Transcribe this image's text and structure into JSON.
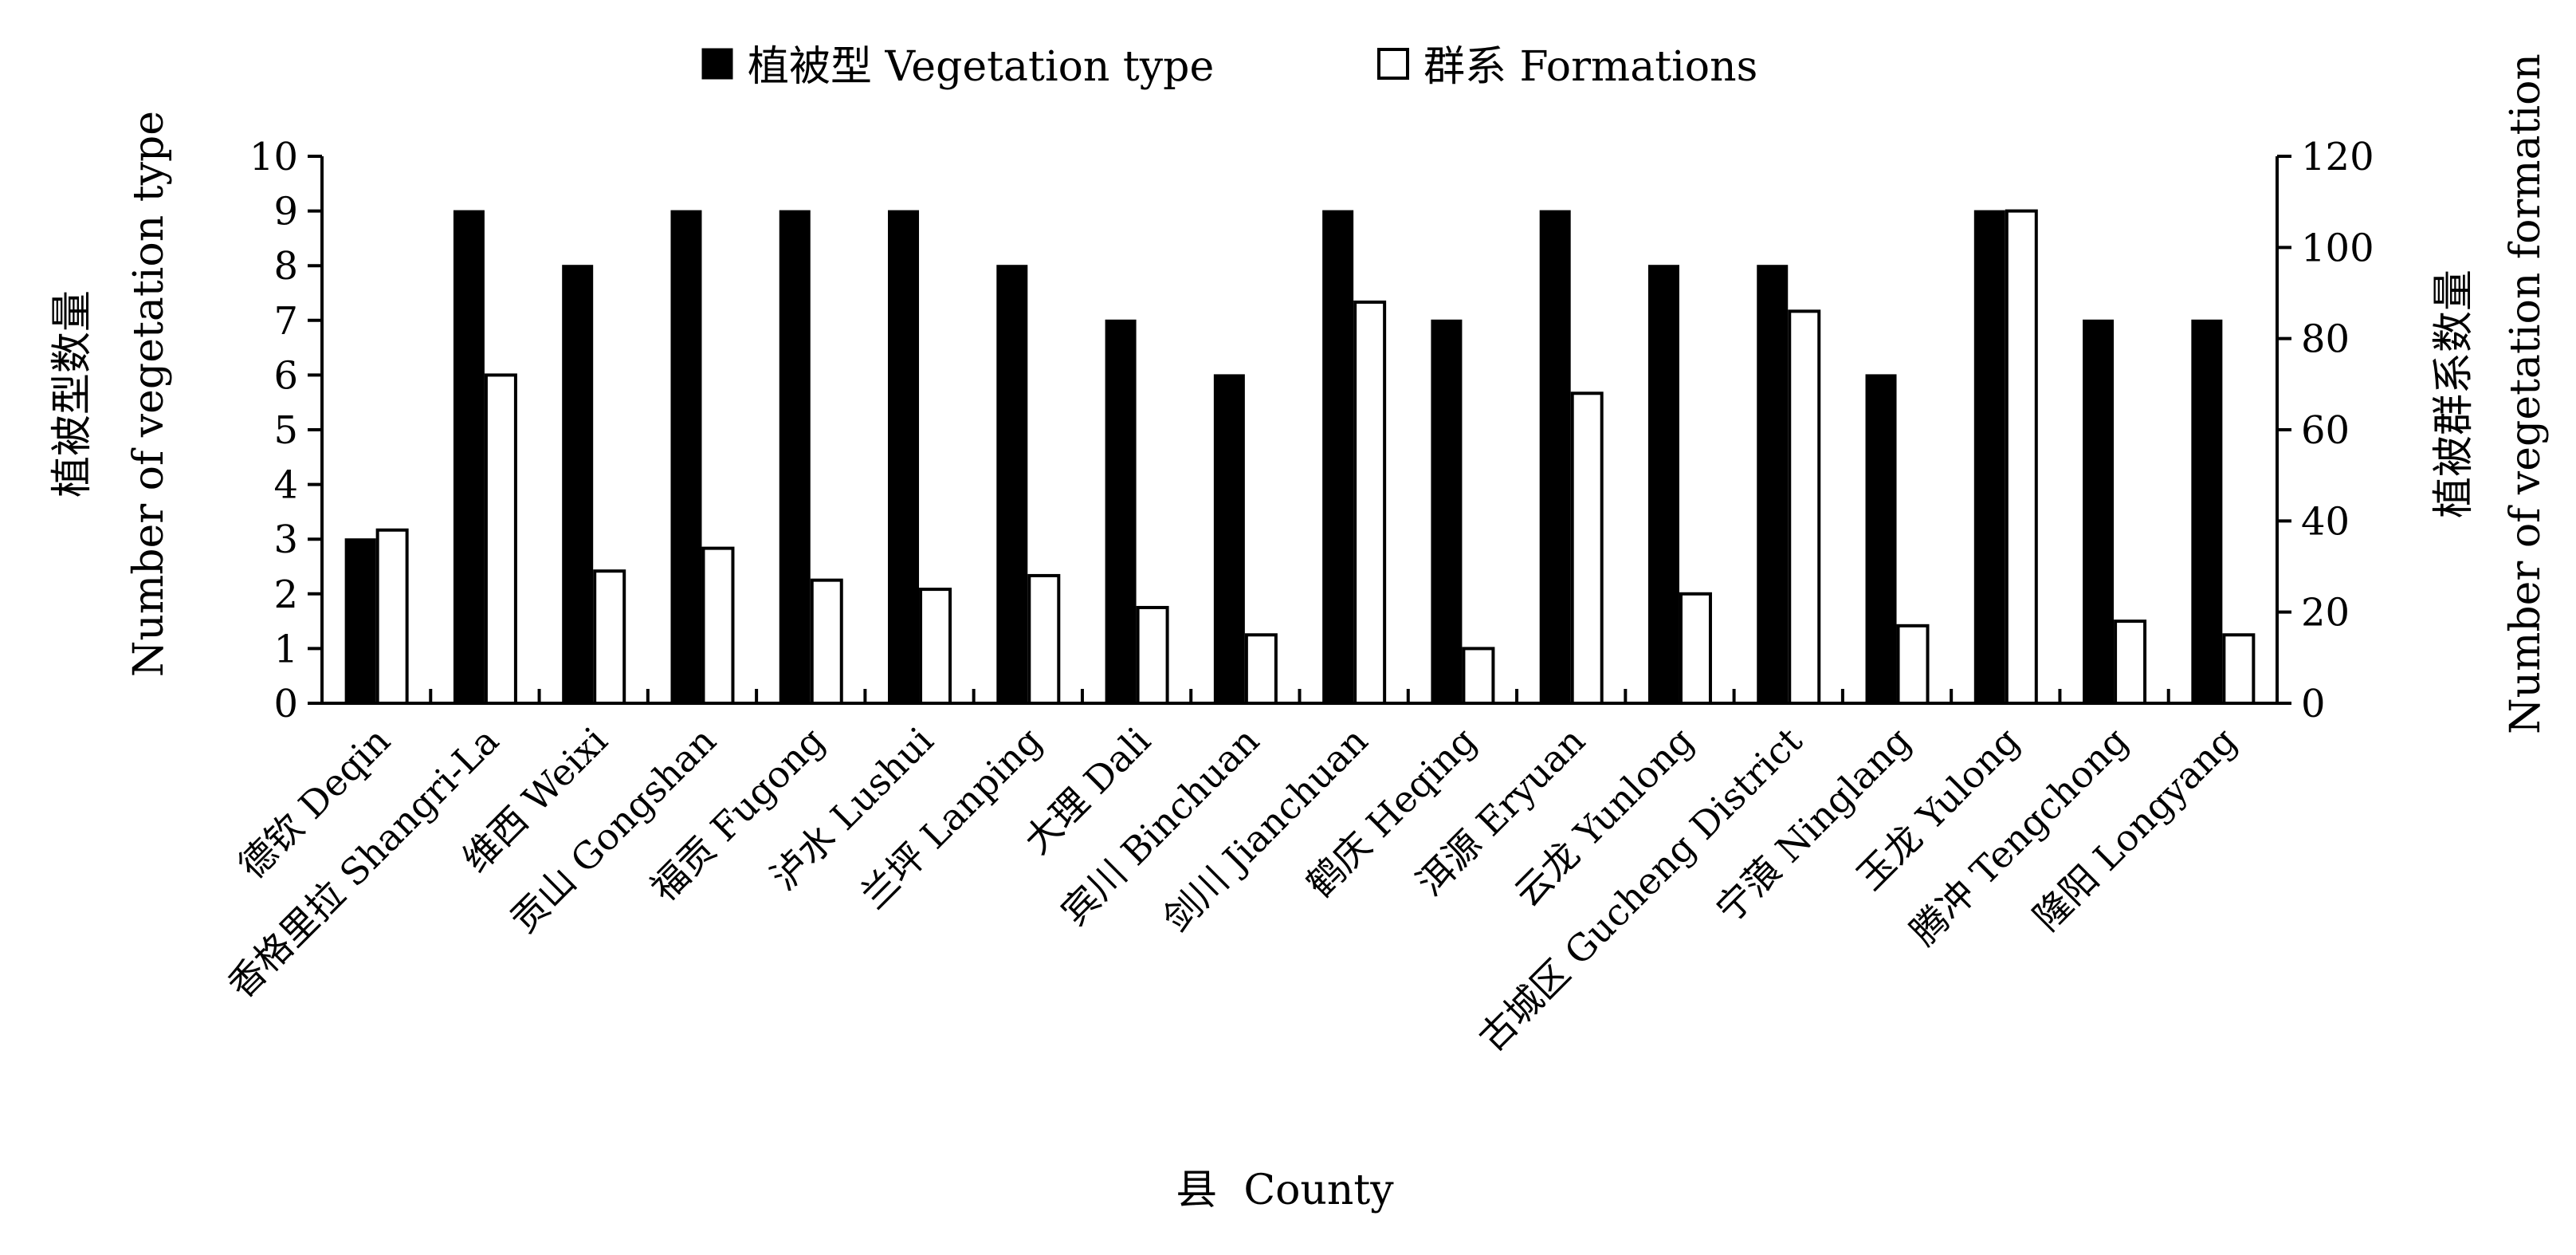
{
  "chart_data": {
    "type": "bar",
    "categories": [
      "德钦 Deqin",
      "香格里拉 Shangri-La",
      "维西 Weixi",
      "贡山 Gongshan",
      "福贡 Fugong",
      "泸水 Lushui",
      "兰坪 Lanping",
      "大理 Dali",
      "宾川 Binchuan",
      "剑川 Jianchuan",
      "鹤庆 Heqing",
      "洱源 Eryuan",
      "云龙 Yunlong",
      "古城区 Gucheng District",
      "宁蒗 Ninglang",
      "玉龙 Yulong",
      "腾冲 Tengchong",
      "隆阳 Longyang"
    ],
    "series": [
      {
        "name": "植被型 Vegetation type",
        "axis": "left",
        "color": "#000000",
        "values": [
          3,
          9,
          8,
          9,
          9,
          9,
          8,
          7,
          6,
          9,
          7,
          9,
          8,
          8,
          6,
          9,
          7,
          7
        ]
      },
      {
        "name": "群系 Formations",
        "axis": "right",
        "color": "#ffffff",
        "values": [
          38,
          72,
          29,
          34,
          27,
          25,
          28,
          21,
          15,
          88,
          12,
          68,
          24,
          86,
          17,
          108,
          18,
          15
        ]
      }
    ],
    "xlabel": "县  County",
    "ylabel_left_cn": "植被型数量",
    "ylabel_left_en": "Number of vegetation type",
    "ylabel_right_cn": "植被群系数量",
    "ylabel_right_en": "Number of vegetation formation",
    "ylim_left": [
      0,
      10
    ],
    "ylim_right": [
      0,
      120
    ],
    "yticks_left": [
      0,
      1,
      2,
      3,
      4,
      5,
      6,
      7,
      8,
      9,
      10
    ],
    "yticks_right": [
      0,
      20,
      40,
      60,
      80,
      100,
      120
    ],
    "grid": false,
    "legend_position": "top-center"
  }
}
